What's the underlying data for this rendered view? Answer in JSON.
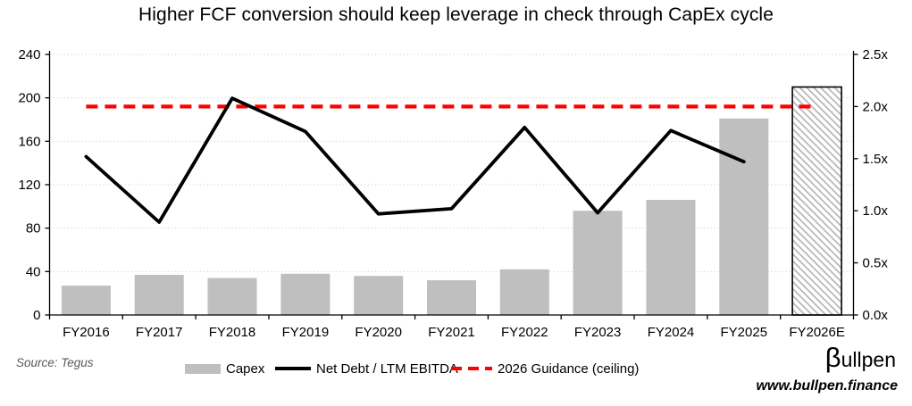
{
  "title": "Higher FCF conversion should keep leverage in check through CapEx cycle",
  "source": "Source: Tegus",
  "branding": {
    "logo_beta": "β",
    "logo_rest": "ullpen",
    "website": "www.bullpen.finance"
  },
  "legend": [
    {
      "label": "Capex",
      "swatch": "bar"
    },
    {
      "label": "Net Debt / LTM EBITDA",
      "swatch": "line"
    },
    {
      "label": "2026 Guidance (ceiling)",
      "swatch": "dash"
    }
  ],
  "colors": {
    "bar": "#bfbfbf",
    "bar_hatch_stripe": "#b5b5b5",
    "bar_hatch_border": "#000000",
    "line": "#000000",
    "guidance": "#ff0000",
    "gridline": "#d9d9d9",
    "axis": "#000000"
  },
  "chart_data": {
    "type": "bar+line combo",
    "categories": [
      "FY2016",
      "FY2017",
      "FY2018",
      "FY2019",
      "FY2020",
      "FY2021",
      "FY2022",
      "FY2023",
      "FY2024",
      "FY2025",
      "FY2026E"
    ],
    "series": [
      {
        "name": "Capex",
        "type": "bar",
        "axis": "left",
        "values": [
          27,
          37,
          34,
          38,
          36,
          32,
          42,
          96,
          106,
          181,
          210
        ],
        "hatched_categories": [
          "FY2026E"
        ]
      },
      {
        "name": "Net Debt / LTM EBITDA",
        "type": "line",
        "axis": "right",
        "values": [
          1.52,
          0.89,
          2.08,
          1.76,
          0.97,
          1.02,
          1.8,
          0.98,
          1.77,
          1.47,
          null
        ]
      },
      {
        "name": "2026 Guidance (ceiling)",
        "type": "dashed-horizontal-line",
        "axis": "right",
        "value": 2.0
      }
    ],
    "left_axis": {
      "min": 0,
      "max": 240,
      "tick_labels": [
        "0",
        "40",
        "80",
        "120",
        "160",
        "200",
        "240"
      ]
    },
    "right_axis": {
      "min": 0,
      "max": 2.5,
      "tick_labels": [
        "0.0x",
        "0.5x",
        "1.0x",
        "1.5x",
        "2.0x",
        "2.5x"
      ]
    },
    "gridlines": "horizontal dotted, left-axis intervals",
    "legend_position": "bottom"
  }
}
